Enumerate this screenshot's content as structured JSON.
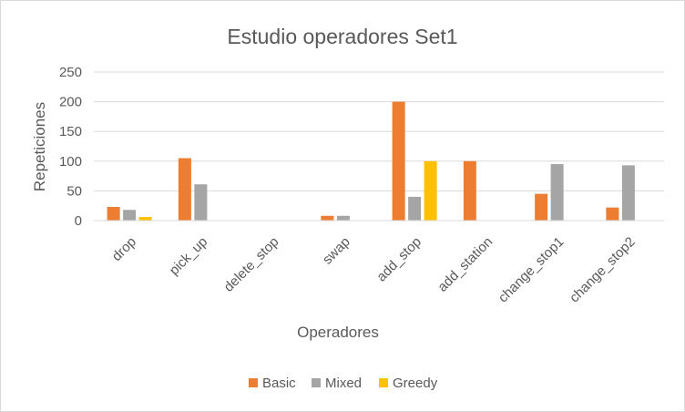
{
  "chart_data": {
    "type": "bar",
    "title": "Estudio operadores Set1",
    "xlabel": "Operadores",
    "ylabel": "Repeticiones",
    "categories": [
      "drop",
      "pick_up",
      "delete_stop",
      "swap",
      "add_stop",
      "add_station",
      "change_stop1",
      "change_stop2"
    ],
    "series": [
      {
        "name": "Basic",
        "color": "#ED7D31",
        "values": [
          23,
          105,
          0,
          8,
          200,
          100,
          45,
          22
        ]
      },
      {
        "name": "Mixed",
        "color": "#A5A5A5",
        "values": [
          18,
          61,
          0,
          8,
          40,
          0,
          95,
          93
        ]
      },
      {
        "name": "Greedy",
        "color": "#FFC000",
        "values": [
          6,
          0,
          0,
          0,
          100,
          0,
          0,
          0
        ]
      }
    ],
    "ylim": [
      0,
      250
    ],
    "yticks": [
      0,
      50,
      100,
      150,
      200,
      250
    ],
    "grid": true,
    "gridline_color": "#d9d9d9",
    "legend_position": "bottom"
  }
}
